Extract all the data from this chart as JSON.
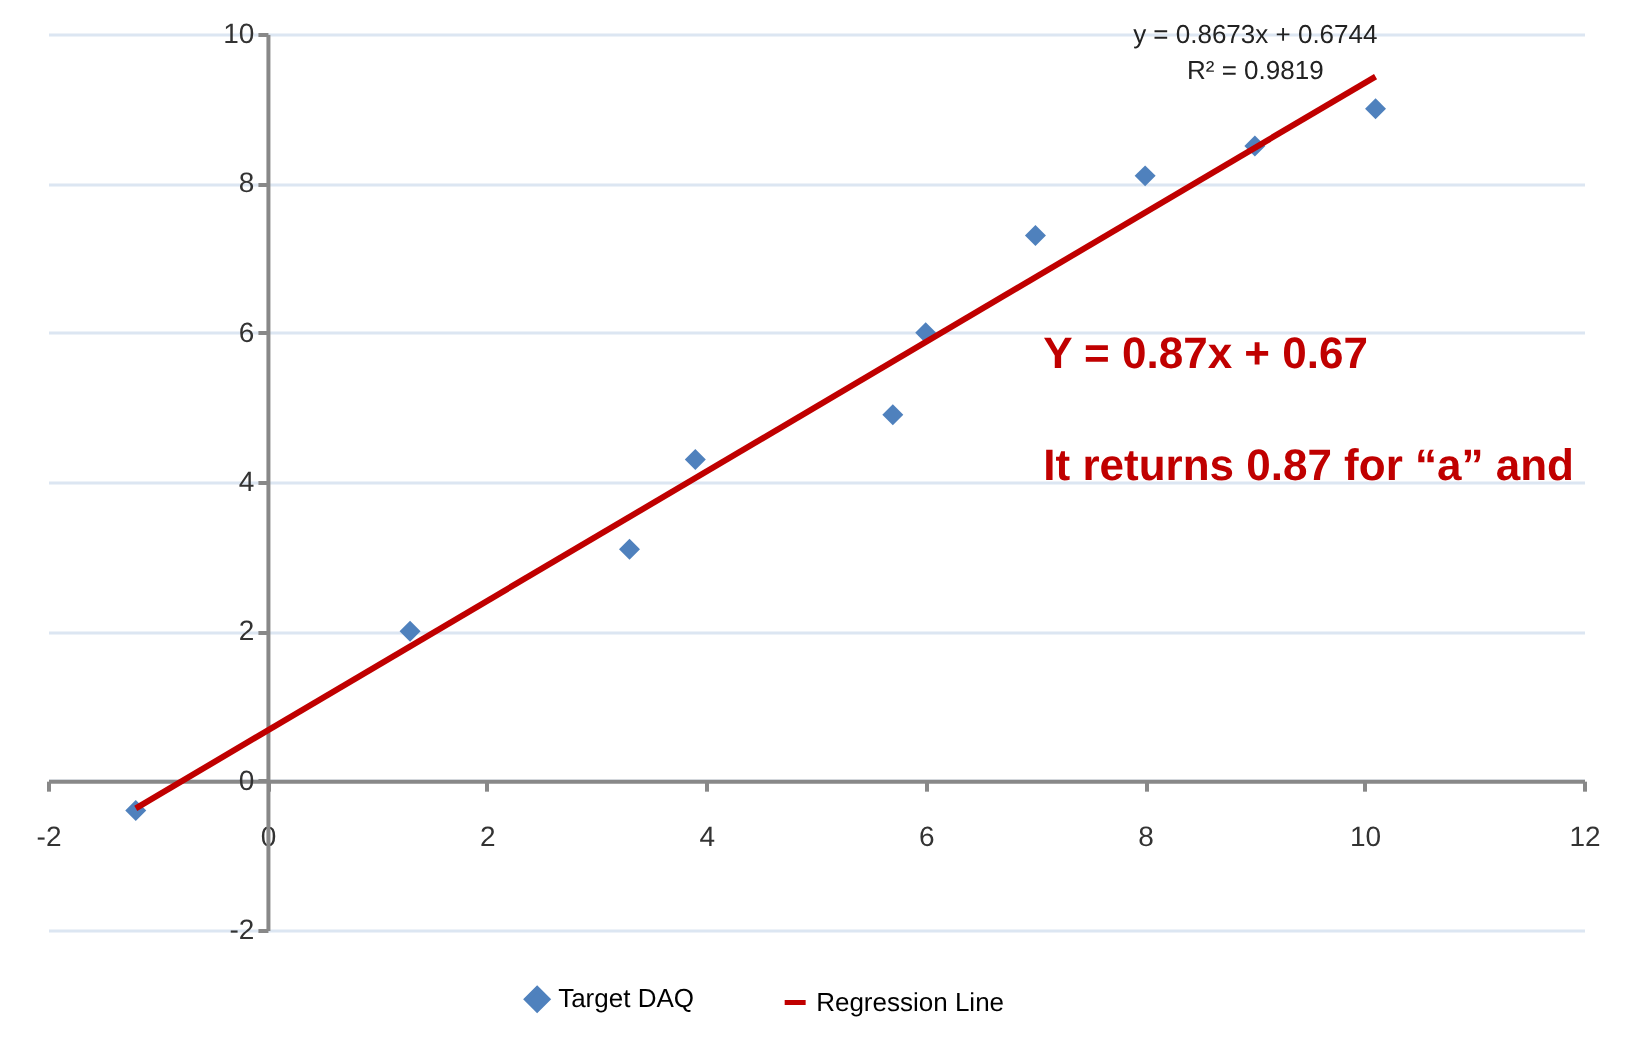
{
  "chart_data": {
    "type": "scatter",
    "annotations": [
      "y = 0.8673x + 0.6744",
      "R² = 0.9819",
      "Y = 0.87x + 0.67",
      "It returns 0.87 for “a” and"
    ],
    "series": [
      {
        "name": "Target DAQ",
        "marker": "diamond",
        "color": "#4f81bd",
        "x": [
          -1.2,
          1.3,
          3.3,
          3.9,
          5.7,
          6.0,
          7.0,
          8.0,
          9.0,
          10.1
        ],
        "values": [
          -0.4,
          2.0,
          3.1,
          4.3,
          4.9,
          6.0,
          7.3,
          8.1,
          8.5,
          9.0
        ]
      },
      {
        "name": "Regression Line",
        "type": "line",
        "marker": "none",
        "color": "#c00000",
        "x": [
          -1.2,
          10.1
        ],
        "values": [
          -0.37,
          9.43
        ]
      }
    ],
    "xlim": [
      -2,
      12
    ],
    "xticks": [
      -2,
      0,
      2,
      4,
      6,
      8,
      10,
      12
    ],
    "ylim": [
      -2,
      10
    ],
    "yticks": [
      -2,
      0,
      2,
      4,
      6,
      8,
      10
    ],
    "grid": "y",
    "legend": "bottom",
    "line_style": "solid"
  }
}
